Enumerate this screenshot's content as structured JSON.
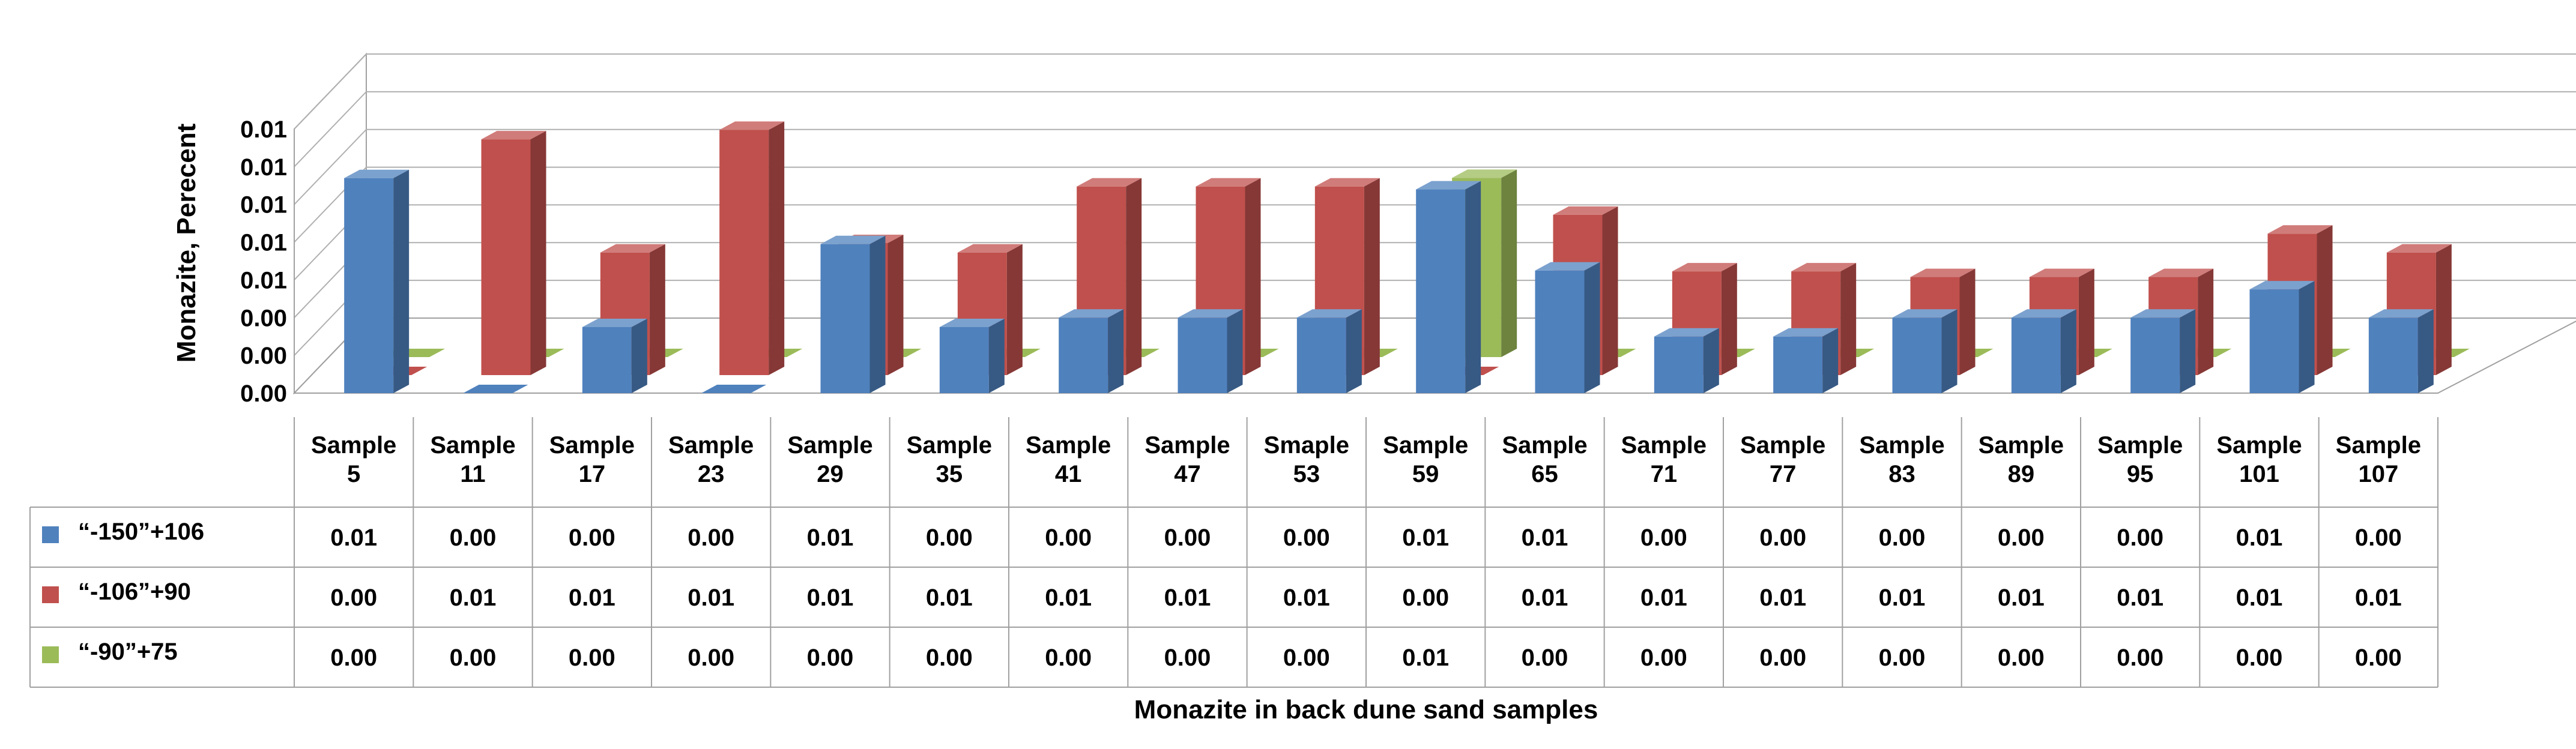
{
  "chart_data": {
    "type": "bar",
    "title": "",
    "xlabel": "Monazite in back dune sand samples",
    "ylabel": "Monazite, Perecent",
    "y_ticks": [
      "0.00",
      "0.00",
      "0.00",
      "0.01",
      "0.01",
      "0.01",
      "0.01",
      "0.01"
    ],
    "grid": true,
    "legend_position": "left, in data table",
    "categories": [
      [
        "Sample",
        "5"
      ],
      [
        "Sample",
        "11"
      ],
      [
        "Sample",
        "17"
      ],
      [
        "Sample",
        "23"
      ],
      [
        "Sample",
        "29"
      ],
      [
        "Sample",
        "35"
      ],
      [
        "Sample",
        "41"
      ],
      [
        "Sample",
        "47"
      ],
      [
        "Smaple",
        "53"
      ],
      [
        "Sample",
        "59"
      ],
      [
        "Sample",
        "65"
      ],
      [
        "Sample",
        "71"
      ],
      [
        "Sample",
        "77"
      ],
      [
        "Sample",
        "83"
      ],
      [
        "Sample",
        "89"
      ],
      [
        "Sample",
        "95"
      ],
      [
        "Sample",
        "101"
      ],
      [
        "Sample",
        "107"
      ]
    ],
    "series": [
      {
        "name": "“-150”+106",
        "color": "#4f81bd",
        "values": [
          0.0114,
          0.0,
          0.0035,
          0.0,
          0.0079,
          0.0035,
          0.004,
          0.004,
          0.004,
          0.0108,
          0.0065,
          0.003,
          0.003,
          0.004,
          0.004,
          0.004,
          0.0055,
          0.004
        ],
        "labels": [
          "0.01",
          "0.00",
          "0.00",
          "0.00",
          "0.01",
          "0.00",
          "0.00",
          "0.00",
          "0.00",
          "0.01",
          "0.01",
          "0.00",
          "0.00",
          "0.00",
          "0.00",
          "0.00",
          "0.01",
          "0.00"
        ]
      },
      {
        "name": "“-106”+90",
        "color": "#c0504d",
        "values": [
          0.0,
          0.0125,
          0.0065,
          0.013,
          0.007,
          0.0065,
          0.01,
          0.01,
          0.01,
          0.0,
          0.0085,
          0.0055,
          0.0055,
          0.0052,
          0.0052,
          0.0052,
          0.0075,
          0.0065
        ],
        "labels": [
          "0.00",
          "0.01",
          "0.01",
          "0.01",
          "0.01",
          "0.01",
          "0.01",
          "0.01",
          "0.01",
          "0.00",
          "0.01",
          "0.01",
          "0.01",
          "0.01",
          "0.01",
          "0.01",
          "0.01",
          "0.01"
        ]
      },
      {
        "name": "“-90”+75",
        "color": "#9bbb59",
        "values": [
          0,
          0,
          0,
          0,
          0,
          0,
          0,
          0,
          0,
          0.0095,
          0,
          0,
          0,
          0,
          0,
          0,
          0,
          0
        ],
        "labels": [
          "0.00",
          "0.00",
          "0.00",
          "0.00",
          "0.00",
          "0.00",
          "0.00",
          "0.00",
          "0.00",
          "0.01",
          "0.00",
          "0.00",
          "0.00",
          "0.00",
          "0.00",
          "0.00",
          "0.00",
          "0.00"
        ]
      }
    ]
  }
}
